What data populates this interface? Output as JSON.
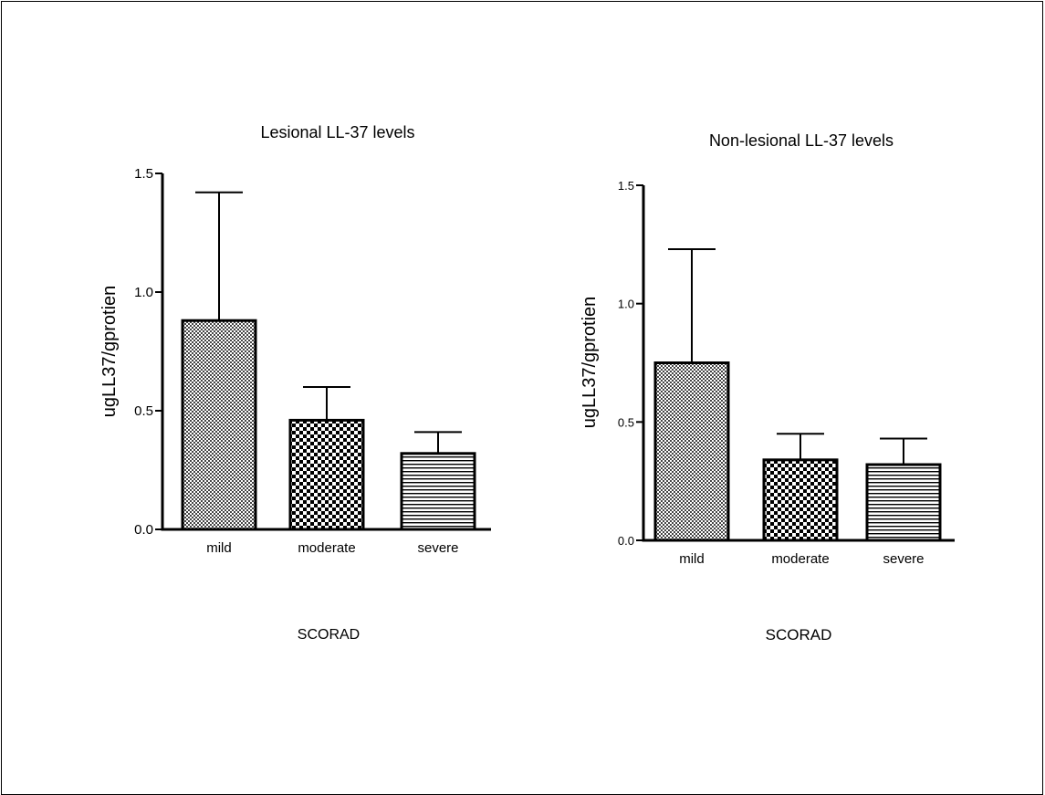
{
  "chart_data": [
    {
      "type": "bar",
      "title": "Lesional LL-37 levels",
      "ylabel": "ugLL37/gprotien",
      "xlabel": "SCORAD",
      "categories": [
        "mild",
        "moderate",
        "severe"
      ],
      "values": [
        0.88,
        0.46,
        0.32
      ],
      "error_upper": [
        1.42,
        0.6,
        0.41
      ],
      "ylim": [
        0,
        1.5
      ],
      "yticks": [
        "0.0",
        "0.5",
        "1.0",
        "1.5"
      ],
      "patterns": [
        "fine-checker",
        "coarse-checker",
        "horizontal-lines"
      ],
      "grid": false
    },
    {
      "type": "bar",
      "title": "Non-lesional LL-37 levels",
      "ylabel": "ugLL37/gprotien",
      "xlabel": "SCORAD",
      "categories": [
        "mild",
        "moderate",
        "severe"
      ],
      "values": [
        0.75,
        0.34,
        0.32
      ],
      "error_upper": [
        1.23,
        0.45,
        0.43
      ],
      "ylim": [
        0,
        1.5
      ],
      "yticks": [
        "0.0",
        "0.5",
        "1.0",
        "1.5"
      ],
      "patterns": [
        "fine-checker",
        "coarse-checker",
        "horizontal-lines"
      ],
      "grid": false
    }
  ]
}
